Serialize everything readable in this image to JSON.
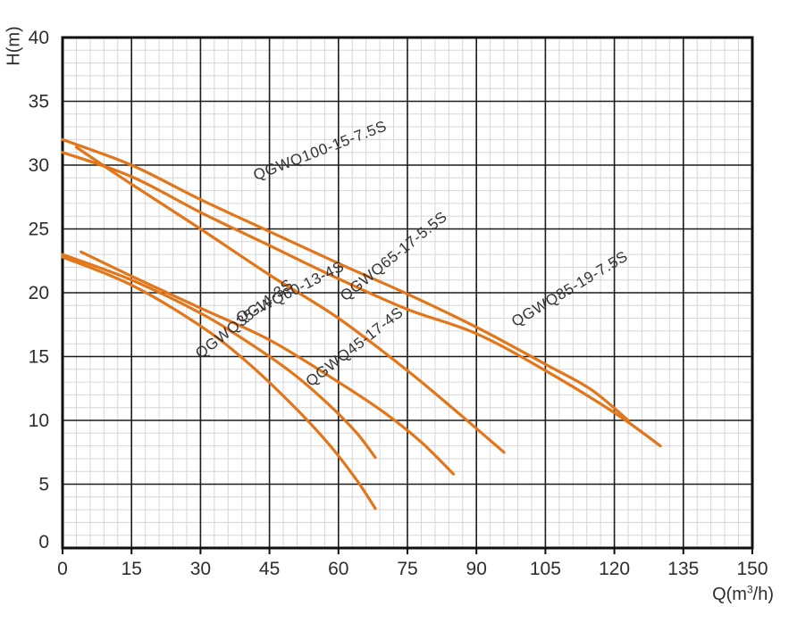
{
  "chart_data": {
    "type": "line",
    "title": "",
    "xlabel": "Q(m³/h)",
    "xlabel_parts": {
      "pre": "Q(m",
      "sup": "3",
      "post": "/h)"
    },
    "ylabel": "H(m)",
    "xlim": [
      0,
      150
    ],
    "ylim": [
      0,
      40
    ],
    "x_ticks": [
      0,
      15,
      30,
      45,
      60,
      75,
      90,
      105,
      120,
      135,
      150
    ],
    "y_ticks": [
      0,
      5,
      10,
      15,
      20,
      25,
      30,
      35,
      40
    ],
    "x_minor_step": 3,
    "y_minor_step": 1,
    "grid": "major and minor, both axes",
    "legend_position": "labels along curves",
    "series": [
      {
        "name": "QGWQ100-15-7.5S",
        "points": [
          [
            0,
            32
          ],
          [
            15,
            30
          ],
          [
            30,
            27.3
          ],
          [
            45,
            24.8
          ],
          [
            60,
            22.3
          ],
          [
            75,
            19.9
          ],
          [
            90,
            17.3
          ],
          [
            105,
            14.4
          ],
          [
            115,
            12.4
          ],
          [
            123,
            10
          ]
        ],
        "label": {
          "q": 42,
          "h": 28.8,
          "angle": -21
        }
      },
      {
        "name": "QGWQ85-19-7.5S",
        "points": [
          [
            0,
            31
          ],
          [
            15,
            29.1
          ],
          [
            30,
            26.3
          ],
          [
            45,
            23.7
          ],
          [
            60,
            21.1
          ],
          [
            75,
            18.7
          ],
          [
            90,
            16.8
          ],
          [
            105,
            13.9
          ],
          [
            120,
            10.6
          ],
          [
            130,
            8
          ]
        ],
        "label": {
          "q": 98.5,
          "h": 17.3,
          "angle": -31
        }
      },
      {
        "name": "QGWQ65-17-5.5S",
        "points": [
          [
            3,
            31.4
          ],
          [
            15,
            28.5
          ],
          [
            30,
            25
          ],
          [
            45,
            21.4
          ],
          [
            60,
            18
          ],
          [
            75,
            13.9
          ],
          [
            85,
            10.9
          ],
          [
            96,
            7.5
          ]
        ],
        "label": {
          "q": 61.5,
          "h": 19.3,
          "angle": -39
        }
      },
      {
        "name": "QGWQ60-13-4S",
        "points": [
          [
            4,
            23.2
          ],
          [
            15,
            21.3
          ],
          [
            30,
            18.8
          ],
          [
            45,
            16.3
          ],
          [
            60,
            13
          ],
          [
            70,
            10.6
          ],
          [
            78,
            8.3
          ],
          [
            85,
            5.8
          ]
        ],
        "label": {
          "q": 38.5,
          "h": 17.6,
          "angle": -27
        }
      },
      {
        "name": "QGWQ45-17-4S",
        "points": [
          [
            0,
            23
          ],
          [
            15,
            21
          ],
          [
            30,
            18.4
          ],
          [
            40,
            16.2
          ],
          [
            50,
            13.7
          ],
          [
            58,
            11.2
          ],
          [
            64,
            9
          ],
          [
            68,
            7.1
          ]
        ],
        "label": {
          "q": 54,
          "h": 12.6,
          "angle": -38
        }
      },
      {
        "name": "QGWQ35-14-3S",
        "points": [
          [
            0,
            22.8
          ],
          [
            15,
            20.6
          ],
          [
            30,
            17.4
          ],
          [
            40,
            14.6
          ],
          [
            50,
            11.2
          ],
          [
            58,
            8.1
          ],
          [
            64,
            5.3
          ],
          [
            68,
            3.1
          ]
        ],
        "label": {
          "q": 30,
          "h": 14.8,
          "angle": -38
        }
      }
    ],
    "colors": {
      "curve": "#E2761B",
      "grid_major": "#1c1c1c",
      "grid_minor": "#d6d6d6",
      "border": "#101010",
      "text": "#2d2d2d",
      "label_text": "#333333",
      "background": "#ffffff"
    }
  }
}
